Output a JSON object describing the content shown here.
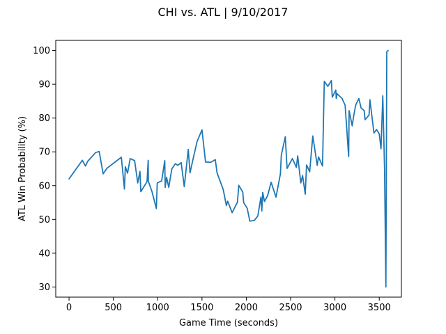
{
  "chart_data": {
    "type": "line",
    "title": "CHI vs. ATL | 9/10/2017",
    "xlabel": "Game Time (seconds)",
    "ylabel": "ATL Win Probability (%)",
    "xlim": [
      -150,
      3750
    ],
    "ylim": [
      27,
      103
    ],
    "xticks": [
      0,
      500,
      1000,
      1500,
      2000,
      2500,
      3000,
      3500
    ],
    "yticks": [
      30,
      40,
      50,
      60,
      70,
      80,
      90,
      100
    ],
    "grid": false,
    "legend": "none",
    "series": [
      {
        "color": "#1f77b4",
        "points": [
          [
            0,
            62
          ],
          [
            150,
            67.5
          ],
          [
            185,
            65.8
          ],
          [
            210,
            67.2
          ],
          [
            300,
            69.8
          ],
          [
            340,
            70.1
          ],
          [
            385,
            63.5
          ],
          [
            430,
            65.2
          ],
          [
            590,
            68.4
          ],
          [
            625,
            59
          ],
          [
            635,
            65.6
          ],
          [
            660,
            63.7
          ],
          [
            690,
            68
          ],
          [
            740,
            67.4
          ],
          [
            775,
            60.8
          ],
          [
            800,
            64.2
          ],
          [
            810,
            58.2
          ],
          [
            880,
            61.2
          ],
          [
            893,
            67.5
          ],
          [
            895,
            61.3
          ],
          [
            935,
            58.3
          ],
          [
            985,
            53.2
          ],
          [
            995,
            60.8
          ],
          [
            1045,
            61.4
          ],
          [
            1080,
            67.4
          ],
          [
            1085,
            59.5
          ],
          [
            1100,
            62.5
          ],
          [
            1125,
            59.5
          ],
          [
            1160,
            65
          ],
          [
            1200,
            66.5
          ],
          [
            1225,
            66
          ],
          [
            1265,
            66.8
          ],
          [
            1300,
            59.7
          ],
          [
            1345,
            70.7
          ],
          [
            1365,
            63.8
          ],
          [
            1390,
            66.8
          ],
          [
            1445,
            73.1
          ],
          [
            1500,
            76.5
          ],
          [
            1540,
            67
          ],
          [
            1600,
            66.9
          ],
          [
            1650,
            67.7
          ],
          [
            1670,
            63.8
          ],
          [
            1740,
            58.8
          ],
          [
            1775,
            54.1
          ],
          [
            1790,
            55.4
          ],
          [
            1840,
            52
          ],
          [
            1900,
            55.1
          ],
          [
            1915,
            60.1
          ],
          [
            1960,
            58.1
          ],
          [
            1970,
            55
          ],
          [
            2010,
            53.3
          ],
          [
            2040,
            49.5
          ],
          [
            2090,
            49.7
          ],
          [
            2130,
            51
          ],
          [
            2165,
            56.6
          ],
          [
            2175,
            52.5
          ],
          [
            2185,
            58
          ],
          [
            2205,
            55.3
          ],
          [
            2240,
            57
          ],
          [
            2280,
            61
          ],
          [
            2335,
            56.6
          ],
          [
            2385,
            63.5
          ],
          [
            2395,
            69
          ],
          [
            2440,
            74.5
          ],
          [
            2460,
            65.1
          ],
          [
            2520,
            68
          ],
          [
            2565,
            65.4
          ],
          [
            2580,
            68.8
          ],
          [
            2615,
            60.8
          ],
          [
            2635,
            63
          ],
          [
            2665,
            57.5
          ],
          [
            2680,
            66.1
          ],
          [
            2715,
            64.1
          ],
          [
            2750,
            74.7
          ],
          [
            2800,
            66
          ],
          [
            2815,
            68.5
          ],
          [
            2860,
            65.8
          ],
          [
            2880,
            90.9
          ],
          [
            2920,
            89.4
          ],
          [
            2960,
            91.1
          ],
          [
            2970,
            86.2
          ],
          [
            3010,
            88.3
          ],
          [
            3015,
            85.8
          ],
          [
            3025,
            87.2
          ],
          [
            3080,
            85.8
          ],
          [
            3115,
            83.8
          ],
          [
            3155,
            68.6
          ],
          [
            3160,
            82.2
          ],
          [
            3195,
            77.7
          ],
          [
            3210,
            80.4
          ],
          [
            3235,
            83.9
          ],
          [
            3270,
            85.8
          ],
          [
            3295,
            83
          ],
          [
            3330,
            82.2
          ],
          [
            3340,
            79.5
          ],
          [
            3385,
            80.9
          ],
          [
            3395,
            85.4
          ],
          [
            3440,
            75.6
          ],
          [
            3470,
            76.6
          ],
          [
            3500,
            75.3
          ],
          [
            3520,
            70.9
          ],
          [
            3540,
            86.6
          ],
          [
            3560,
            64.8
          ],
          [
            3575,
            30
          ],
          [
            3585,
            99.6
          ],
          [
            3600,
            100
          ]
        ]
      }
    ]
  }
}
